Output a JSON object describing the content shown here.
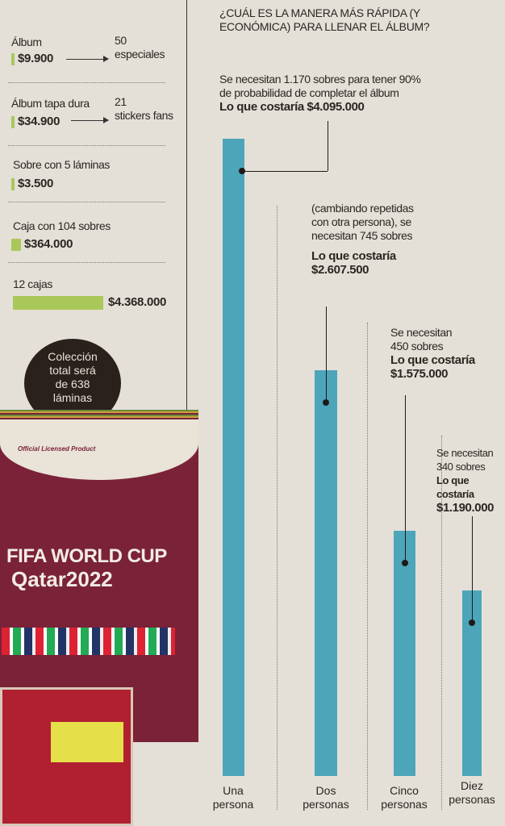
{
  "prices": [
    {
      "label": "Álbum",
      "price": "$9.900",
      "note": [
        "50",
        "especiales"
      ]
    },
    {
      "label": "Álbum tapa dura",
      "price": "$34.900",
      "note": [
        "21",
        "stickers fans"
      ]
    },
    {
      "label": "Sobre con 5 láminas",
      "price": "$3.500"
    },
    {
      "label": "Caja con 104 sobres",
      "price": "$364.000"
    },
    {
      "label": "12 cajas",
      "price": "$4.368.000"
    }
  ],
  "collection_badge": [
    "Colección",
    "total será",
    "de 638",
    "láminas"
  ],
  "album_cover": {
    "licensed": "Official Licensed Product",
    "title": "FIFA WORLD CUP",
    "subtitle": "Qatar2022"
  },
  "colors": {
    "bar": "#4da5ba",
    "price_bar": "#a9c85a",
    "album": "#7a2238",
    "background": "#e4e0d8"
  },
  "chart_data": {
    "type": "bar",
    "title": "¿CUÁL ES LA MANERA MÁS RÁPIDA (Y ECONÓMICA) PARA LLENAR EL ÁLBUM?",
    "categories": [
      "Una persona",
      "Dos personas",
      "Cinco personas",
      "Diez personas"
    ],
    "values": [
      1170,
      745,
      450,
      340
    ],
    "unit": "sobres",
    "costs": [
      "$4.095.000",
      "$2.607.500",
      "$1.575.000",
      "$1.190.000"
    ],
    "annotations": [
      {
        "text": [
          "Se necesitan 1.170 sobres para tener 90%",
          "de probabilidad de completar el álbum"
        ],
        "cost_label": "Lo que costaría",
        "cost": "$4.095.000"
      },
      {
        "text": [
          "(cambiando repetidas",
          "con otra persona), se",
          "necesitan 745 sobres"
        ],
        "cost_label": "Lo que costaría",
        "cost": "$2.607.500"
      },
      {
        "text": [
          "Se necesitan",
          "450 sobres"
        ],
        "cost_label": "Lo que costaría",
        "cost": "$1.575.000"
      },
      {
        "text": [
          "Se necesitan",
          "340 sobres"
        ],
        "cost_label": "Lo que costaría",
        "cost": "$1.190.000"
      }
    ],
    "grid": false
  }
}
